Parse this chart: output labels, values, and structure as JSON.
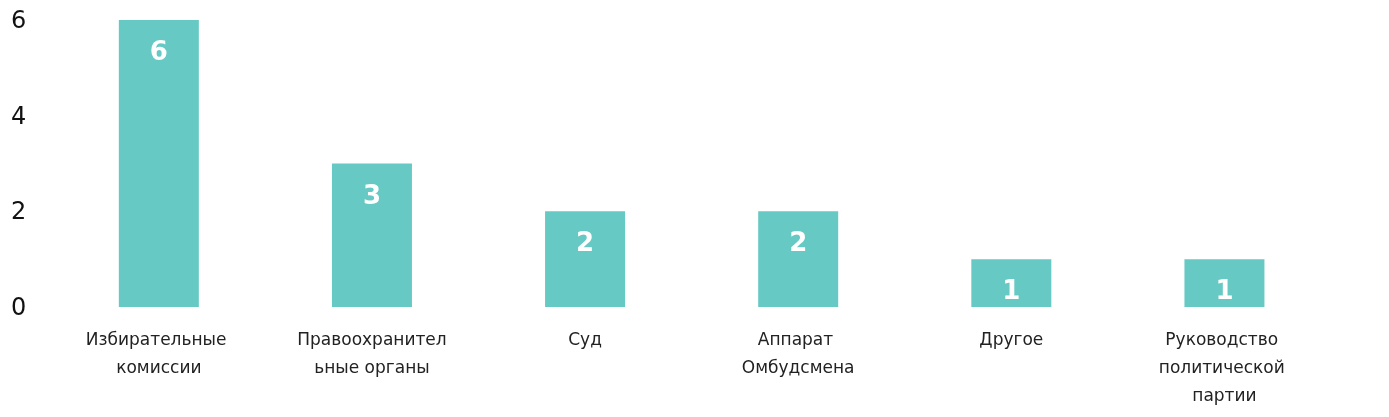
{
  "chart_data": {
    "type": "bar",
    "categories": [
      "Избирательные комиссии",
      "Правоохранительные органы",
      "Суд",
      "Аппарат Омбудсмена",
      "Другое",
      "Руководство политической партии"
    ],
    "values": [
      6,
      3,
      2,
      2,
      1,
      1
    ],
    "color": "#66c9c4",
    "ylim": [
      0,
      6
    ],
    "yticks": [
      0,
      2,
      4,
      6
    ],
    "grid": false,
    "data_labels": true
  }
}
